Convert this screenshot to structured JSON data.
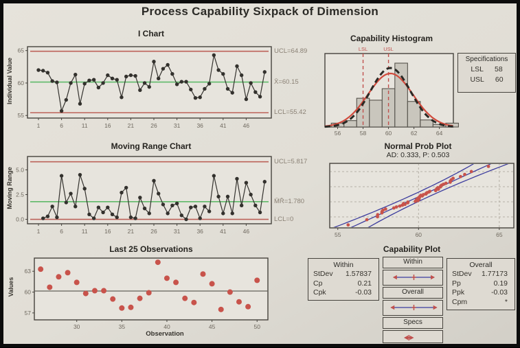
{
  "header": {
    "title": "Process Capability Sixpack of Dimension"
  },
  "chart_data": {
    "i_chart": {
      "type": "line",
      "title": "I Chart",
      "ylabel": "Individual Value",
      "x_start": 1,
      "values": [
        62.0,
        61.9,
        61.6,
        60.3,
        60.1,
        55.7,
        57.4,
        60.0,
        61.3,
        56.8,
        59.9,
        60.4,
        60.5,
        59.3,
        60.0,
        61.2,
        60.7,
        60.5,
        57.8,
        61.0,
        61.2,
        61.1,
        58.9,
        60.0,
        59.4,
        63.3,
        60.7,
        62.2,
        62.8,
        61.4,
        59.8,
        60.2,
        60.2,
        59.0,
        57.7,
        57.8,
        59.1,
        59.9,
        64.3,
        62.0,
        61.4,
        59.1,
        58.5,
        62.6,
        61.2,
        57.5,
        60.0,
        58.6,
        57.9,
        61.7
      ],
      "mean": 60.15,
      "ucl": 64.89,
      "lcl": 55.42,
      "labels": {
        "ucl": "UCL=64.89",
        "center": "X̄=60.15",
        "lcl": "LCL=55.42"
      },
      "yticks": [
        65,
        60,
        55
      ],
      "xticks": [
        1,
        6,
        11,
        16,
        21,
        26,
        31,
        36,
        41,
        46
      ],
      "ylim": [
        54.6,
        65.6
      ]
    },
    "mr_chart": {
      "type": "line",
      "title": "Moving Range Chart",
      "ylabel": "Moving Range",
      "x_start": 2,
      "values": [
        0.1,
        0.3,
        1.3,
        0.2,
        4.4,
        1.7,
        2.6,
        1.3,
        4.5,
        3.1,
        0.5,
        0.1,
        1.2,
        0.7,
        1.2,
        0.5,
        0.2,
        2.7,
        3.2,
        0.2,
        0.1,
        2.2,
        1.1,
        0.6,
        3.9,
        2.6,
        1.5,
        0.6,
        1.4,
        1.6,
        0.4,
        0.0,
        1.2,
        1.3,
        0.1,
        1.3,
        0.8,
        4.4,
        2.3,
        0.6,
        2.3,
        0.6,
        4.1,
        1.4,
        3.7,
        2.5,
        1.4,
        0.7,
        3.8
      ],
      "mean": 1.78,
      "ucl": 5.817,
      "lcl": 0,
      "labels": {
        "ucl": "UCL=5.817",
        "center": "M̄R̄=1.780",
        "lcl": "LCL=0"
      },
      "yticks": [
        5.0,
        2.5,
        0.0
      ],
      "xticks": [
        1,
        6,
        11,
        16,
        21,
        26,
        31,
        36,
        41,
        46
      ],
      "ylim": [
        -0.45,
        6.35
      ]
    },
    "histogram": {
      "type": "bar",
      "title": "Capability Histogram",
      "bin_centers": [
        56,
        57,
        58,
        59,
        60,
        61,
        62,
        63,
        64,
        65
      ],
      "rel_heights": [
        0.06,
        0.1,
        0.45,
        0.42,
        0.6,
        1.0,
        0.4,
        0.11,
        0.04,
        0.06
      ],
      "xticks": [
        56,
        58,
        60,
        62,
        64
      ],
      "lsl": 58,
      "usl": 60,
      "lsl_label": "LSL",
      "usl_label": "USL",
      "mean": 60.15,
      "within_sd": 1.57837,
      "overall_sd": 1.77173,
      "xlim": [
        55.0,
        65.1
      ],
      "specs_box": {
        "title": "Specifications",
        "rows": [
          {
            "label": "LSL",
            "value": "58"
          },
          {
            "label": "USL",
            "value": "60"
          }
        ]
      }
    },
    "prob_plot": {
      "type": "scatter",
      "title": "Normal Prob Plot",
      "subtitle": "AD: 0.333, P: 0.503",
      "xticks": [
        55,
        60,
        65
      ],
      "xlim": [
        54.5,
        65.9
      ],
      "mean": 60.15,
      "sd": 1.77173,
      "n": 50
    },
    "last25": {
      "type": "scatter",
      "title": "Last 25 Observations",
      "xlabel": "Observation",
      "ylabel": "Values",
      "x_start": 26,
      "values": [
        63.3,
        60.7,
        62.2,
        62.8,
        61.4,
        59.8,
        60.2,
        60.2,
        59.0,
        57.7,
        57.8,
        59.1,
        59.9,
        64.3,
        62.0,
        61.4,
        59.1,
        58.5,
        62.6,
        61.2,
        57.5,
        60.0,
        58.6,
        57.9,
        61.7
      ],
      "mean": 60.15,
      "yticks": [
        63,
        60,
        57
      ],
      "xticks": [
        30,
        35,
        40,
        45,
        50
      ],
      "ylim": [
        56.0,
        64.9
      ],
      "xlim": [
        25.3,
        51.2
      ]
    },
    "capability_plot": {
      "type": "table",
      "title": "Capability Plot",
      "within_box": {
        "title": "Within",
        "rows": [
          {
            "label": "StDev",
            "value": "1.57837"
          },
          {
            "label": "Cp",
            "value": "0.21"
          },
          {
            "label": "Cpk",
            "value": "-0.03"
          }
        ]
      },
      "overall_box": {
        "title": "Overall",
        "rows": [
          {
            "label": "StDev",
            "value": "1.77173"
          },
          {
            "label": "Pp",
            "value": "0.19"
          },
          {
            "label": "Ppk",
            "value": "-0.03"
          },
          {
            "label": "Cpm",
            "value": "*"
          }
        ]
      },
      "intervals": {
        "axis_range": [
          54,
          66
        ],
        "rows": [
          {
            "header": "Within",
            "range": [
              55.42,
              64.89
            ]
          },
          {
            "header": "Overall",
            "range": [
              54.84,
              65.47
            ]
          },
          {
            "header": "Specs",
            "range": [
              58,
              60
            ]
          }
        ]
      }
    }
  },
  "colors": {
    "background": "#e1ded6",
    "plot_background": "#e7e4dd",
    "frame_border": "#0c0c0c",
    "control_limit_red": "#bc6259",
    "center_line_green": "#5fb969",
    "series_dark": "#33312d",
    "tick_text": "#6e685e",
    "histogram_bar_fill": "#c9c6bd",
    "histogram_bar_stroke": "#55524b",
    "normal_curve_overall_red": "#d04a3c",
    "normal_curve_within_black": "#2a2925",
    "spec_line_red": "#c0504d",
    "prob_fit_blue": "#3c3c9e",
    "grid_dash": "#b5b0a6",
    "scatter_point_red": "#c8534b",
    "mean_line_gray": "#63605a",
    "box_border": "#45423c"
  }
}
